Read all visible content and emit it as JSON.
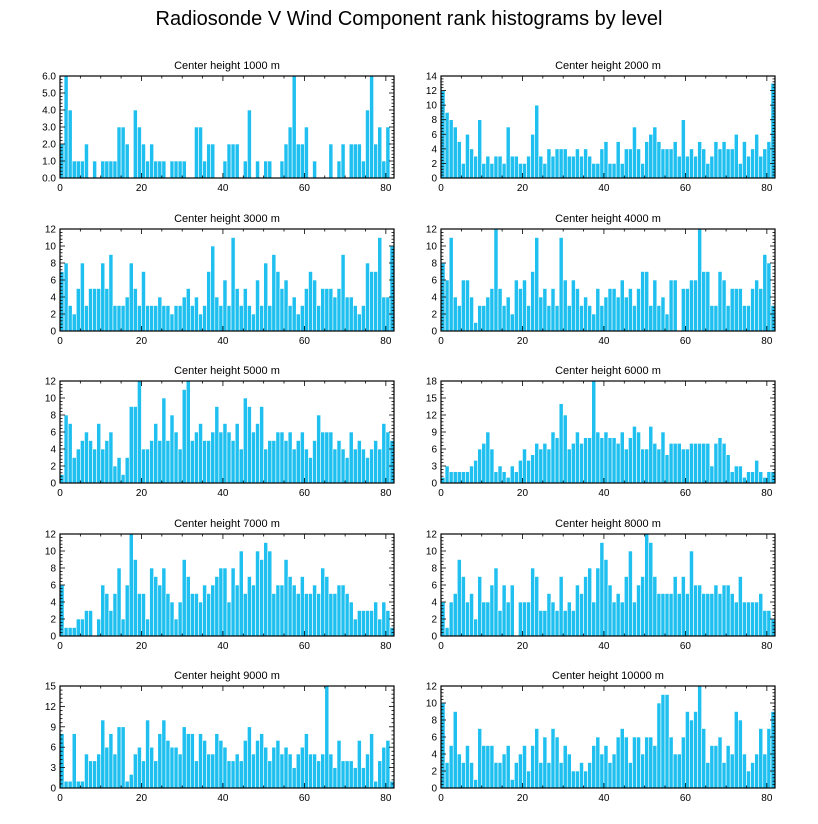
{
  "figure_title": "Radiosonde V Wind Component rank histograms by level",
  "colors": {
    "bar_fill": "#1fc0ef",
    "bar_stroke": "#ffffff",
    "axis": "#000000",
    "background": "#ffffff"
  },
  "chart_data": [
    {
      "type": "bar",
      "title": "Center height 1000 m",
      "xlim": [
        0,
        82
      ],
      "ylim": [
        0,
        6
      ],
      "xticks": [
        0,
        20,
        40,
        60,
        80
      ],
      "yticks": [
        0,
        1,
        2,
        3,
        4,
        5,
        6
      ],
      "ytick_labels": [
        "0.0",
        "1.0",
        "2.0",
        "3.0",
        "4.0",
        "5.0",
        "6.0"
      ],
      "values": [
        2,
        6,
        4,
        1,
        1,
        1,
        2,
        0,
        1,
        0,
        1,
        1,
        1,
        1,
        3,
        3,
        2,
        0,
        4,
        3,
        2,
        1,
        2,
        1,
        1,
        1,
        0,
        1,
        1,
        1,
        1,
        0,
        0,
        3,
        3,
        1,
        2,
        2,
        0,
        0,
        1,
        2,
        2,
        2,
        0,
        1,
        4,
        0,
        1,
        0,
        1,
        1,
        0,
        0,
        1,
        2,
        3,
        6,
        2,
        2,
        3,
        0,
        1,
        0,
        0,
        0,
        2,
        0,
        1,
        2,
        0,
        2,
        2,
        2,
        1,
        4,
        6,
        2,
        3,
        1,
        3,
        0
      ]
    },
    {
      "type": "bar",
      "title": "Center height 2000 m",
      "xlim": [
        0,
        82
      ],
      "ylim": [
        0,
        14
      ],
      "xticks": [
        0,
        20,
        40,
        60,
        80
      ],
      "yticks": [
        0,
        2,
        4,
        6,
        8,
        10,
        12,
        14
      ],
      "ytick_labels": [
        "0",
        "2",
        "4",
        "6",
        "8",
        "10",
        "12",
        "14"
      ],
      "values": [
        12,
        9,
        8,
        7,
        5,
        2,
        6,
        4,
        3,
        8,
        2,
        3,
        2,
        3,
        3,
        2,
        7,
        3,
        3,
        2,
        2,
        3,
        6,
        10,
        3,
        2,
        4,
        3,
        4,
        4,
        4,
        3,
        3,
        4,
        3,
        4,
        3,
        2,
        2,
        4,
        5,
        2,
        2,
        5,
        2,
        4,
        4,
        7,
        4,
        2,
        5,
        6,
        7,
        5,
        4,
        4,
        4,
        5,
        3,
        8,
        3,
        4,
        3,
        5,
        4,
        2,
        3,
        5,
        4,
        5,
        4,
        4,
        6,
        2,
        5,
        3,
        4,
        6,
        3,
        4,
        5,
        13
      ]
    },
    {
      "type": "bar",
      "title": "Center height 3000 m",
      "xlim": [
        0,
        82
      ],
      "ylim": [
        0,
        12
      ],
      "xticks": [
        0,
        20,
        40,
        60,
        80
      ],
      "yticks": [
        0,
        2,
        4,
        6,
        8,
        10,
        12
      ],
      "ytick_labels": [
        "0",
        "2",
        "4",
        "6",
        "8",
        "10",
        "12"
      ],
      "values": [
        7,
        8,
        3,
        2,
        5,
        8,
        3,
        5,
        5,
        5,
        8,
        5,
        9,
        3,
        3,
        3,
        4,
        8,
        5,
        3,
        7,
        3,
        3,
        3,
        4,
        3,
        3,
        2,
        3,
        3,
        4,
        5,
        3,
        4,
        2,
        3,
        7,
        10,
        4,
        3,
        6,
        3,
        11,
        5,
        3,
        5,
        3,
        2,
        6,
        3,
        8,
        3,
        9,
        7,
        5,
        6,
        3,
        4,
        2,
        3,
        5,
        7,
        6,
        3,
        5,
        5,
        5,
        4,
        5,
        9,
        4,
        4,
        3,
        2,
        3,
        8,
        7,
        7,
        11,
        4,
        4,
        10
      ]
    },
    {
      "type": "bar",
      "title": "Center height 4000 m",
      "xlim": [
        0,
        82
      ],
      "ylim": [
        0,
        12
      ],
      "xticks": [
        0,
        20,
        40,
        60,
        80
      ],
      "yticks": [
        0,
        2,
        4,
        6,
        8,
        10,
        12
      ],
      "ytick_labels": [
        "0",
        "2",
        "4",
        "6",
        "8",
        "10",
        "12"
      ],
      "values": [
        8,
        6,
        11,
        4,
        3,
        6,
        6,
        4,
        1,
        3,
        3,
        4,
        5,
        12,
        5,
        3,
        4,
        2,
        6,
        5,
        6,
        3,
        7,
        11,
        4,
        5,
        3,
        5,
        3,
        11,
        6,
        3,
        6,
        5,
        3,
        4,
        3,
        2,
        5,
        3,
        4,
        5,
        5,
        4,
        6,
        4,
        5,
        3,
        5,
        7,
        7,
        3,
        6,
        3,
        4,
        2,
        6,
        6,
        0,
        5,
        5,
        6,
        6,
        12,
        7,
        7,
        3,
        3,
        7,
        6,
        3,
        5,
        5,
        5,
        3,
        3,
        5,
        6,
        5,
        9,
        8,
        3
      ]
    },
    {
      "type": "bar",
      "title": "Center height 5000 m",
      "xlim": [
        0,
        82
      ],
      "ylim": [
        0,
        12
      ],
      "xticks": [
        0,
        20,
        40,
        60,
        80
      ],
      "yticks": [
        0,
        2,
        4,
        6,
        8,
        10,
        12
      ],
      "ytick_labels": [
        "0",
        "2",
        "4",
        "6",
        "8",
        "10",
        "12"
      ],
      "values": [
        1,
        8,
        7,
        3,
        4,
        5,
        6,
        5,
        4,
        7,
        4,
        5,
        6,
        2,
        3,
        1,
        3,
        9,
        9,
        12,
        4,
        4,
        5,
        7,
        5,
        10,
        5,
        8,
        6,
        4,
        11,
        12,
        5,
        6,
        7,
        5,
        5,
        6,
        9,
        6,
        7,
        6,
        5,
        7,
        4,
        10,
        9,
        6,
        7,
        9,
        4,
        5,
        5,
        6,
        6,
        5,
        6,
        4,
        5,
        6,
        4,
        3,
        5,
        8,
        6,
        6,
        6,
        4,
        5,
        4,
        3,
        6,
        4,
        5,
        4,
        3,
        4,
        5,
        4,
        7,
        6,
        5
      ]
    },
    {
      "type": "bar",
      "title": "Center height 6000 m",
      "xlim": [
        0,
        82
      ],
      "ylim": [
        0,
        18
      ],
      "xticks": [
        0,
        20,
        40,
        60,
        80
      ],
      "yticks": [
        0,
        3,
        6,
        9,
        12,
        15,
        18
      ],
      "ytick_labels": [
        "0",
        "3",
        "6",
        "9",
        "12",
        "15",
        "18"
      ],
      "values": [
        1,
        3,
        2,
        2,
        2,
        2,
        2,
        3,
        4,
        6,
        7,
        9,
        6,
        2,
        3,
        2,
        1,
        3,
        2,
        4,
        6,
        4,
        5,
        7,
        6,
        7,
        6,
        9,
        8,
        14,
        12,
        6,
        7,
        9,
        7,
        8,
        8,
        18,
        9,
        8,
        9,
        8,
        8,
        7,
        9,
        6,
        8,
        10,
        9,
        6,
        6,
        10,
        7,
        6,
        9,
        5,
        7,
        7,
        7,
        6,
        6,
        7,
        7,
        7,
        7,
        7,
        3,
        7,
        8,
        7,
        5,
        2,
        3,
        3,
        1,
        2,
        2,
        4,
        2,
        1,
        2,
        2
      ]
    },
    {
      "type": "bar",
      "title": "Center height 7000 m",
      "xlim": [
        0,
        82
      ],
      "ylim": [
        0,
        12
      ],
      "xticks": [
        0,
        20,
        40,
        60,
        80
      ],
      "yticks": [
        0,
        2,
        4,
        6,
        8,
        10,
        12
      ],
      "ytick_labels": [
        "0",
        "2",
        "4",
        "6",
        "8",
        "10",
        "12"
      ],
      "values": [
        6,
        1,
        1,
        1,
        2,
        2,
        3,
        3,
        0,
        2,
        6,
        5,
        3,
        5,
        8,
        2,
        6,
        12,
        9,
        5,
        5,
        2,
        8,
        7,
        6,
        8,
        5,
        4,
        2,
        4,
        9,
        7,
        5,
        5,
        4,
        6,
        5,
        6,
        7,
        8,
        8,
        4,
        8,
        6,
        10,
        5,
        7,
        6,
        10,
        9,
        11,
        10,
        5,
        6,
        6,
        9,
        7,
        6,
        5,
        7,
        5,
        5,
        6,
        5,
        8,
        7,
        5,
        5,
        6,
        6,
        5,
        4,
        2,
        3,
        3,
        3,
        3,
        4,
        2,
        4,
        3,
        1
      ]
    },
    {
      "type": "bar",
      "title": "Center height 8000 m",
      "xlim": [
        0,
        82
      ],
      "ylim": [
        0,
        12
      ],
      "xticks": [
        0,
        20,
        40,
        60,
        80
      ],
      "yticks": [
        0,
        2,
        4,
        6,
        8,
        10,
        12
      ],
      "ytick_labels": [
        "0",
        "2",
        "4",
        "6",
        "8",
        "10",
        "12"
      ],
      "values": [
        4,
        1,
        4,
        5,
        9,
        7,
        4,
        5,
        2,
        7,
        4,
        4,
        6,
        8,
        3,
        6,
        4,
        6,
        0,
        4,
        4,
        4,
        8,
        7,
        3,
        3,
        5,
        4,
        3,
        7,
        3,
        4,
        3,
        6,
        5,
        7,
        8,
        4,
        8,
        11,
        9,
        6,
        4,
        5,
        4,
        7,
        10,
        4,
        6,
        7,
        12,
        11,
        7,
        5,
        5,
        5,
        5,
        7,
        5,
        7,
        5,
        10,
        6,
        6,
        5,
        5,
        5,
        6,
        5,
        6,
        6,
        5,
        4,
        7,
        4,
        4,
        4,
        4,
        5,
        3,
        3,
        2
      ]
    },
    {
      "type": "bar",
      "title": "Center height 9000 m",
      "xlim": [
        0,
        82
      ],
      "ylim": [
        0,
        15
      ],
      "xticks": [
        0,
        20,
        40,
        60,
        80
      ],
      "yticks": [
        0,
        3,
        6,
        9,
        12,
        15
      ],
      "ytick_labels": [
        "0",
        "3",
        "6",
        "9",
        "12",
        "15"
      ],
      "values": [
        8,
        1,
        1,
        8,
        1,
        1,
        5,
        4,
        4,
        5,
        10,
        6,
        8,
        5,
        9,
        9,
        1,
        2,
        5,
        6,
        4,
        10,
        6,
        4,
        8,
        10,
        7,
        6,
        6,
        5,
        9,
        8,
        8,
        4,
        8,
        7,
        5,
        5,
        8,
        7,
        6,
        4,
        4,
        5,
        4,
        7,
        9,
        5,
        7,
        8,
        6,
        4,
        6,
        7,
        5,
        6,
        5,
        3,
        5,
        6,
        8,
        5,
        5,
        4,
        5,
        15,
        5,
        3,
        7,
        4,
        4,
        4,
        3,
        7,
        3,
        5,
        8,
        1,
        4,
        6,
        7,
        1
      ]
    },
    {
      "type": "bar",
      "title": "Center height 10000 m",
      "xlim": [
        0,
        82
      ],
      "ylim": [
        0,
        12
      ],
      "xticks": [
        0,
        20,
        40,
        60,
        80
      ],
      "yticks": [
        0,
        2,
        4,
        6,
        8,
        10,
        12
      ],
      "ytick_labels": [
        "0",
        "2",
        "4",
        "6",
        "8",
        "10",
        "12"
      ],
      "values": [
        10,
        3,
        5,
        9,
        4,
        3,
        5,
        3,
        1,
        7,
        5,
        5,
        5,
        3,
        3,
        4,
        5,
        1,
        3,
        4,
        5,
        2,
        5,
        7,
        3,
        6,
        3,
        7,
        6,
        3,
        5,
        4,
        2,
        2,
        3,
        2,
        3,
        5,
        6,
        4,
        5,
        3,
        4,
        6,
        7,
        6,
        3,
        6,
        6,
        4,
        6,
        6,
        5,
        10,
        11,
        11,
        6,
        4,
        4,
        6,
        9,
        8,
        9,
        12,
        7,
        3,
        5,
        5,
        6,
        3,
        5,
        4,
        9,
        8,
        4,
        2,
        3,
        4,
        7,
        4,
        7,
        9
      ]
    }
  ]
}
